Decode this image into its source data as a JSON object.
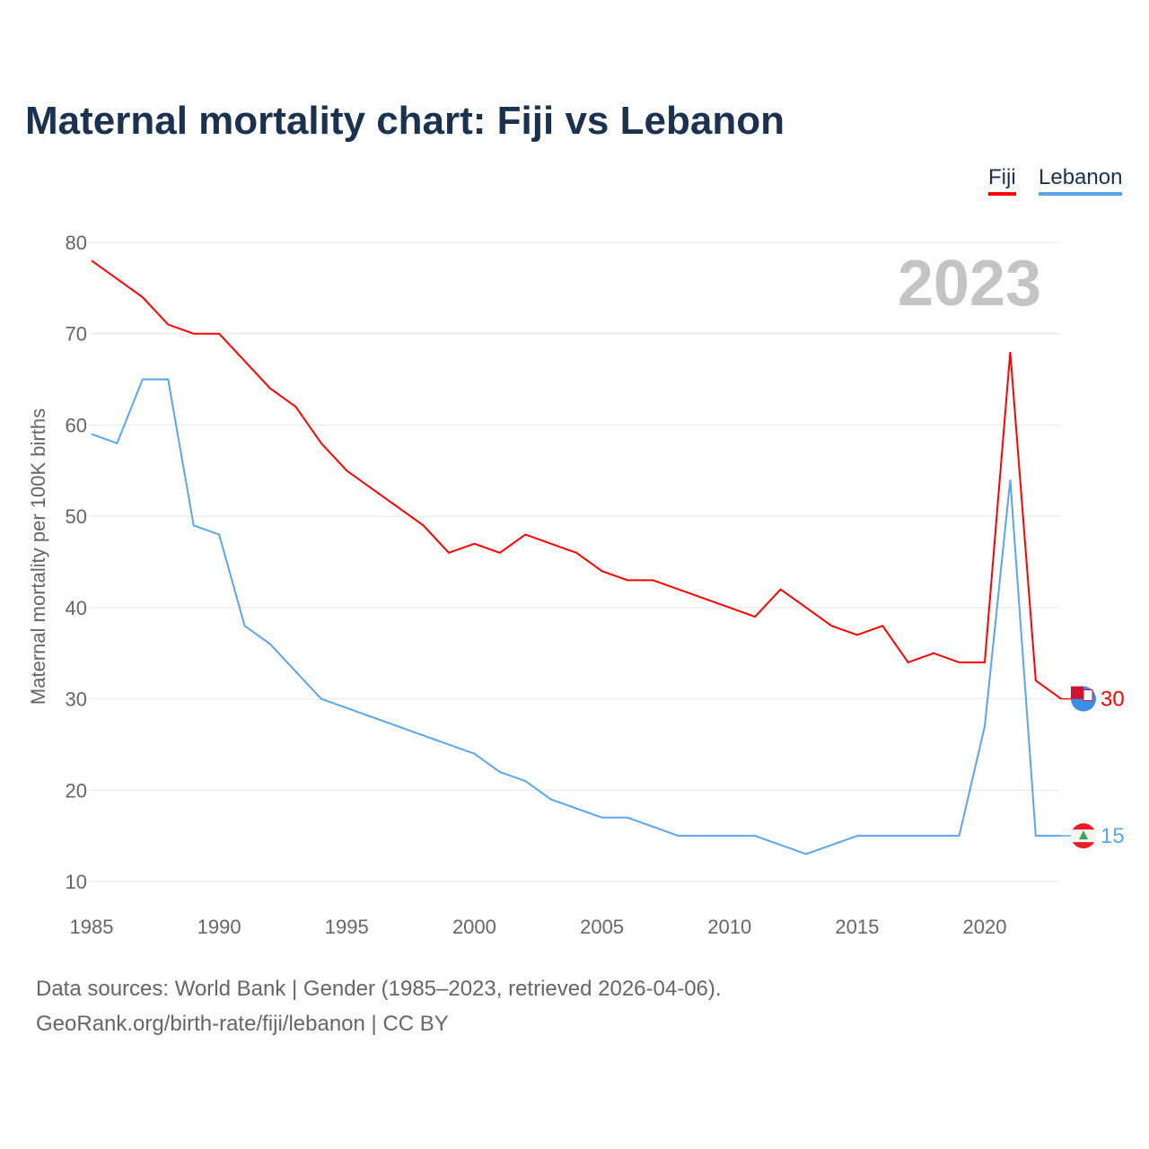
{
  "chart_data": {
    "type": "line",
    "title": "Maternal mortality chart: Fiji vs Lebanon",
    "ylabel": "Maternal mortality per 100K births",
    "xlabel": "",
    "xlim": [
      1985,
      2023
    ],
    "ylim": [
      10,
      80
    ],
    "yticks": [
      10,
      20,
      30,
      40,
      50,
      60,
      70,
      80
    ],
    "xticks": [
      1985,
      1990,
      1995,
      2000,
      2005,
      2010,
      2015,
      2020
    ],
    "grid": true,
    "legend_position": "top-right",
    "year_label": "2023",
    "x": [
      1985,
      1986,
      1987,
      1988,
      1989,
      1990,
      1991,
      1992,
      1993,
      1994,
      1995,
      1996,
      1997,
      1998,
      1999,
      2000,
      2001,
      2002,
      2003,
      2004,
      2005,
      2006,
      2007,
      2008,
      2009,
      2010,
      2011,
      2012,
      2013,
      2014,
      2015,
      2016,
      2017,
      2018,
      2019,
      2020,
      2021,
      2022,
      2023
    ],
    "series": [
      {
        "name": "Fiji",
        "color": "#ff0000",
        "end_label": "30",
        "values": [
          78,
          76,
          74,
          71,
          70,
          70,
          67,
          64,
          62,
          58,
          55,
          53,
          51,
          49,
          46,
          47,
          46,
          48,
          47,
          46,
          44,
          43,
          43,
          42,
          41,
          40,
          39,
          42,
          40,
          38,
          37,
          38,
          34,
          35,
          34,
          34,
          68,
          32,
          30
        ]
      },
      {
        "name": "Lebanon",
        "color": "#5aa5ec",
        "end_label": "15",
        "values": [
          59,
          58,
          65,
          65,
          49,
          48,
          38,
          36,
          33,
          30,
          29,
          28,
          27,
          26,
          25,
          24,
          22,
          21,
          19,
          18,
          17,
          17,
          16,
          15,
          15,
          15,
          15,
          14,
          13,
          14,
          15,
          15,
          15,
          15,
          15,
          27,
          54,
          15,
          15
        ]
      }
    ]
  },
  "footer": {
    "line1": "Data sources: World Bank | Gender (1985–2023, retrieved 2026-04-06).",
    "line2": "GeoRank.org/birth-rate/fiji/lebanon | CC BY"
  }
}
